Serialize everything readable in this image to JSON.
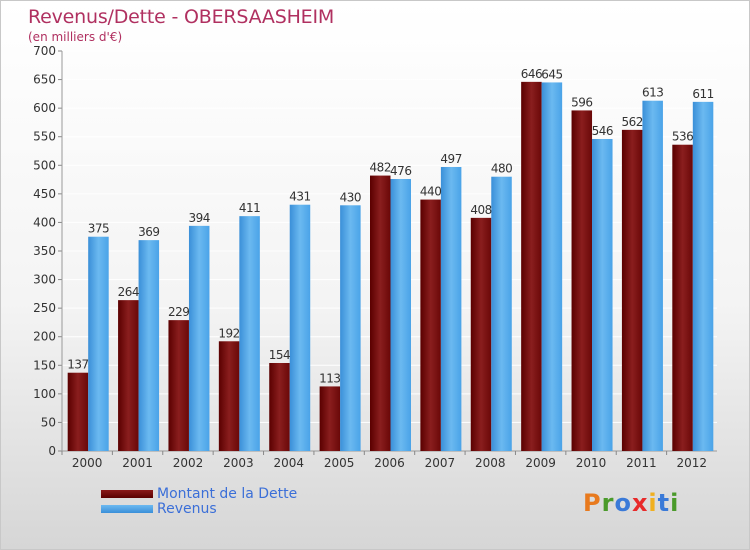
{
  "title": "Revenus/Dette - OBERSAASHEIM",
  "subtitle": "(en milliers d'€)",
  "logo": [
    "P",
    "r",
    "o",
    "x",
    "i",
    "t",
    "i"
  ],
  "logo_colors": [
    "#e87a1e",
    "#4a9a2a",
    "#3a7ad8",
    "#e82a2a",
    "#f0b020",
    "#3a7ad8",
    "#4a9a2a"
  ],
  "legend": [
    "Montant de la Dette",
    "Revenus"
  ],
  "colors": {
    "debt": "#7a1010",
    "revenue": "#4aa3e8",
    "title": "#b03060",
    "legend_text": "#3b6fd8"
  },
  "chart_data": {
    "type": "bar",
    "title": "Revenus/Dette - OBERSAASHEIM",
    "subtitle": "(en milliers d'€)",
    "categories": [
      "2000",
      "2001",
      "2002",
      "2003",
      "2004",
      "2005",
      "2006",
      "2007",
      "2008",
      "2009",
      "2010",
      "2011",
      "2012"
    ],
    "series": [
      {
        "name": "Montant de la Dette",
        "values": [
          137,
          264,
          229,
          192,
          154,
          113,
          482,
          440,
          408,
          646,
          596,
          562,
          536
        ]
      },
      {
        "name": "Revenus",
        "values": [
          375,
          369,
          394,
          411,
          431,
          430,
          476,
          497,
          480,
          645,
          546,
          613,
          611
        ]
      }
    ],
    "ylim": [
      0,
      700
    ],
    "yticks": [
      0,
      50,
      100,
      150,
      200,
      250,
      300,
      350,
      400,
      450,
      500,
      550,
      600,
      650,
      700
    ],
    "grid": true,
    "legend_position": "bottom-left"
  }
}
